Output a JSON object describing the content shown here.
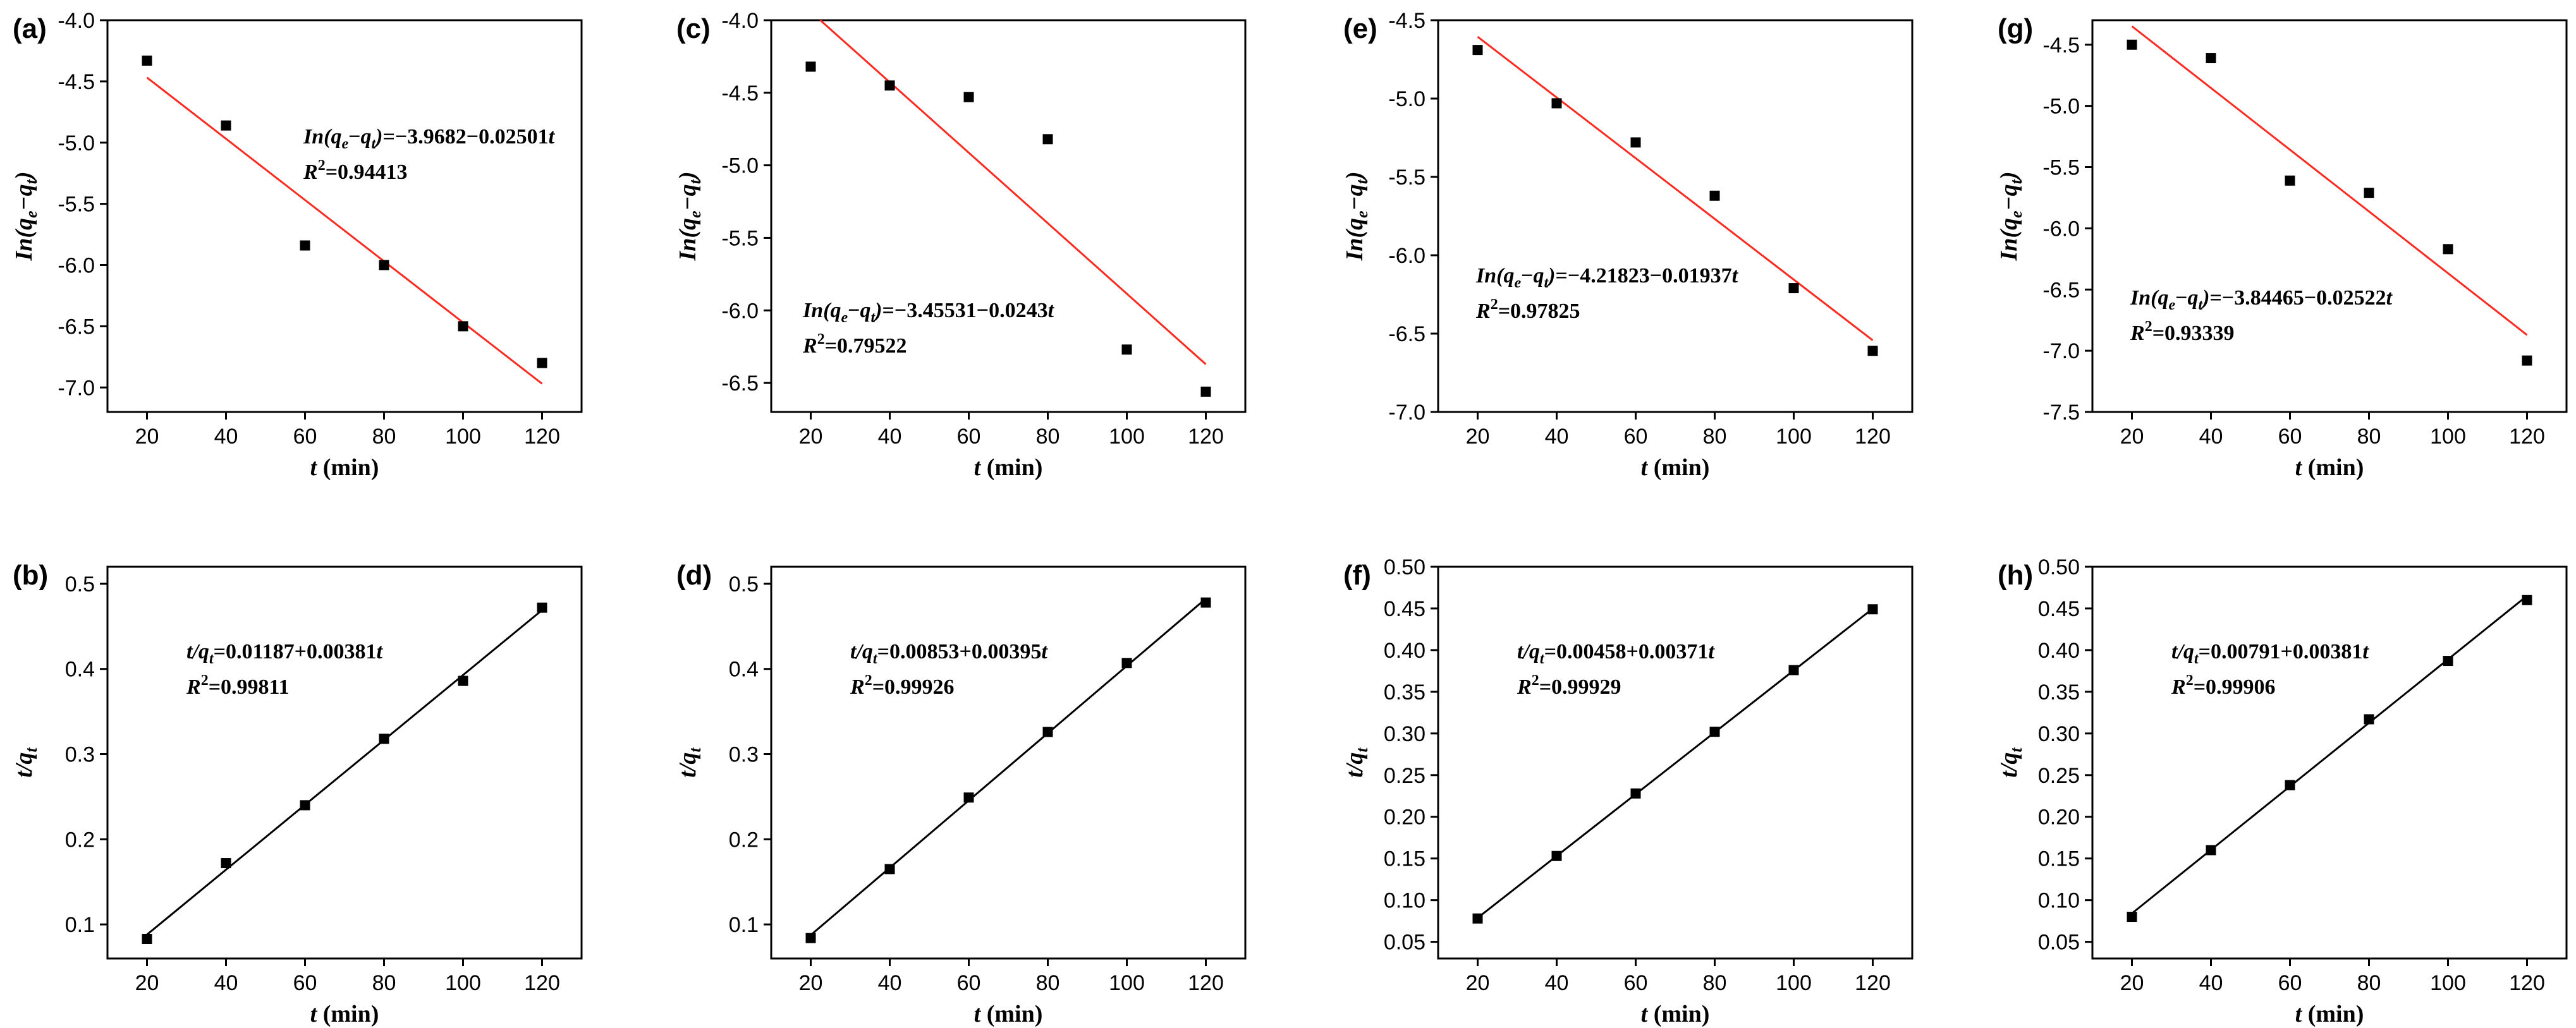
{
  "chart_data": [
    {
      "panel": "(a)",
      "type": "scatter",
      "fit_color": "#ff2a1f",
      "xlabel": "t (min)",
      "ylabel": "In(qe−qt)",
      "xlim": [
        10,
        130
      ],
      "ylim": [
        -7.2,
        -4.0
      ],
      "xticks": [
        "20",
        "40",
        "60",
        "80",
        "100",
        "120"
      ],
      "yticks": [
        "-7.0",
        "-6.5",
        "-6.0",
        "-5.5",
        "-5.0",
        "-4.5",
        "-4.0"
      ],
      "x": [
        20,
        40,
        60,
        80,
        100,
        120
      ],
      "y": [
        -4.33,
        -4.86,
        -5.84,
        -6.0,
        -6.5,
        -6.8
      ],
      "fit": {
        "intercept": -3.9682,
        "slope": -0.02501
      },
      "equation": "In(qe−qt)=−3.9682−0.02501t",
      "r2": "R2=0.94413",
      "annotation_pos": "right-middle"
    },
    {
      "panel": "(c)",
      "type": "scatter",
      "fit_color": "#ff2a1f",
      "xlabel": "t (min)",
      "ylabel": "In(qe−qt)",
      "xlim": [
        10,
        130
      ],
      "ylim": [
        -6.7,
        -4.0
      ],
      "xticks": [
        "20",
        "40",
        "60",
        "80",
        "100",
        "120"
      ],
      "yticks": [
        "-6.5",
        "-6.0",
        "-5.5",
        "-5.0",
        "-4.5",
        "-4.0"
      ],
      "x": [
        20,
        40,
        60,
        80,
        100,
        120
      ],
      "y": [
        -4.32,
        -4.45,
        -4.53,
        -4.82,
        -6.27,
        -6.56
      ],
      "fit": {
        "intercept": -3.45531,
        "slope": -0.0243
      },
      "equation": "In(qe−qt)=−3.45531−0.0243t",
      "r2": "R2=0.79522",
      "annotation_pos": "left-lower"
    },
    {
      "panel": "(e)",
      "type": "scatter",
      "fit_color": "#ff2a1f",
      "xlabel": "t (min)",
      "ylabel": "In(qe−qt)",
      "xlim": [
        10,
        130
      ],
      "ylim": [
        -7.0,
        -4.5
      ],
      "xticks": [
        "20",
        "40",
        "60",
        "80",
        "100",
        "120"
      ],
      "yticks": [
        "-7.0",
        "-6.5",
        "-6.0",
        "-5.5",
        "-5.0",
        "-4.5"
      ],
      "x": [
        20,
        40,
        60,
        80,
        100,
        120
      ],
      "y": [
        -4.69,
        -5.03,
        -5.28,
        -5.62,
        -6.21,
        -6.61
      ],
      "fit": {
        "intercept": -4.21823,
        "slope": -0.01937
      },
      "equation": "In(qe−qt)=−4.21823−0.01937t",
      "r2": "R2=0.97825",
      "annotation_pos": "left-lower"
    },
    {
      "panel": "(g)",
      "type": "scatter",
      "fit_color": "#ff2a1f",
      "xlabel": "t (min)",
      "ylabel": "In(qe−qt)",
      "xlim": [
        10,
        130
      ],
      "ylim": [
        -7.5,
        -4.3
      ],
      "xticks": [
        "20",
        "40",
        "60",
        "80",
        "100",
        "120"
      ],
      "yticks": [
        "-7.5",
        "-7.0",
        "-6.5",
        "-6.0",
        "-5.5",
        "-5.0",
        "-4.5"
      ],
      "x": [
        20,
        40,
        60,
        80,
        100,
        120
      ],
      "y": [
        -4.5,
        -4.61,
        -5.61,
        -5.71,
        -6.17,
        -7.08
      ],
      "fit": {
        "intercept": -3.84465,
        "slope": -0.02522
      },
      "equation": "In(qe−qt)=−3.84465−0.02522t",
      "r2": "R2=0.93339",
      "annotation_pos": "left-lower"
    },
    {
      "panel": "(b)",
      "type": "scatter",
      "fit_color": "#000000",
      "xlabel": "t (min)",
      "ylabel": "t/qt",
      "xlim": [
        10,
        130
      ],
      "ylim": [
        0.06,
        0.52
      ],
      "xticks": [
        "20",
        "40",
        "60",
        "80",
        "100",
        "120"
      ],
      "yticks": [
        "0.1",
        "0.2",
        "0.3",
        "0.4",
        "0.5"
      ],
      "x": [
        20,
        40,
        60,
        80,
        100,
        120
      ],
      "y": [
        0.083,
        0.172,
        0.24,
        0.318,
        0.386,
        0.472
      ],
      "fit": {
        "intercept": 0.01187,
        "slope": 0.00381
      },
      "equation": "t/qt=0.01187+0.00381t",
      "r2": "R2=0.99811",
      "annotation_pos": "left-upper"
    },
    {
      "panel": "(d)",
      "type": "scatter",
      "fit_color": "#000000",
      "xlabel": "t (min)",
      "ylabel": "t/qt",
      "xlim": [
        10,
        130
      ],
      "ylim": [
        0.06,
        0.52
      ],
      "xticks": [
        "20",
        "40",
        "60",
        "80",
        "100",
        "120"
      ],
      "yticks": [
        "0.1",
        "0.2",
        "0.3",
        "0.4",
        "0.5"
      ],
      "x": [
        20,
        40,
        60,
        80,
        100,
        120
      ],
      "y": [
        0.084,
        0.165,
        0.249,
        0.326,
        0.407,
        0.478
      ],
      "fit": {
        "intercept": 0.00853,
        "slope": 0.00395
      },
      "equation": "t/qt=0.00853+0.00395t",
      "r2": "R2=0.99926",
      "annotation_pos": "left-upper"
    },
    {
      "panel": "(f)",
      "type": "scatter",
      "fit_color": "#000000",
      "xlabel": "t (min)",
      "ylabel": "t/qt",
      "xlim": [
        10,
        130
      ],
      "ylim": [
        0.03,
        0.5
      ],
      "xticks": [
        "20",
        "40",
        "60",
        "80",
        "100",
        "120"
      ],
      "yticks": [
        "0.05",
        "0.10",
        "0.15",
        "0.20",
        "0.25",
        "0.30",
        "0.35",
        "0.40",
        "0.45",
        "0.50"
      ],
      "x": [
        20,
        40,
        60,
        80,
        100,
        120
      ],
      "y": [
        0.078,
        0.153,
        0.228,
        0.302,
        0.376,
        0.449
      ],
      "fit": {
        "intercept": 0.00458,
        "slope": 0.00371
      },
      "equation": "t/qt=0.00458+0.00371t",
      "r2": "R2=0.99929",
      "annotation_pos": "left-upper"
    },
    {
      "panel": "(h)",
      "type": "scatter",
      "fit_color": "#000000",
      "xlabel": "t (min)",
      "ylabel": "t/qt",
      "xlim": [
        10,
        130
      ],
      "ylim": [
        0.03,
        0.5
      ],
      "xticks": [
        "20",
        "40",
        "60",
        "80",
        "100",
        "120"
      ],
      "yticks": [
        "0.05",
        "0.10",
        "0.15",
        "0.20",
        "0.25",
        "0.30",
        "0.35",
        "0.40",
        "0.45",
        "0.50"
      ],
      "x": [
        20,
        40,
        60,
        80,
        100,
        120
      ],
      "y": [
        0.08,
        0.16,
        0.238,
        0.317,
        0.387,
        0.46
      ],
      "fit": {
        "intercept": 0.00791,
        "slope": 0.00381
      },
      "equation": "t/qt=0.00791+0.00381t",
      "r2": "R2=0.99906",
      "annotation_pos": "left-upper"
    }
  ]
}
